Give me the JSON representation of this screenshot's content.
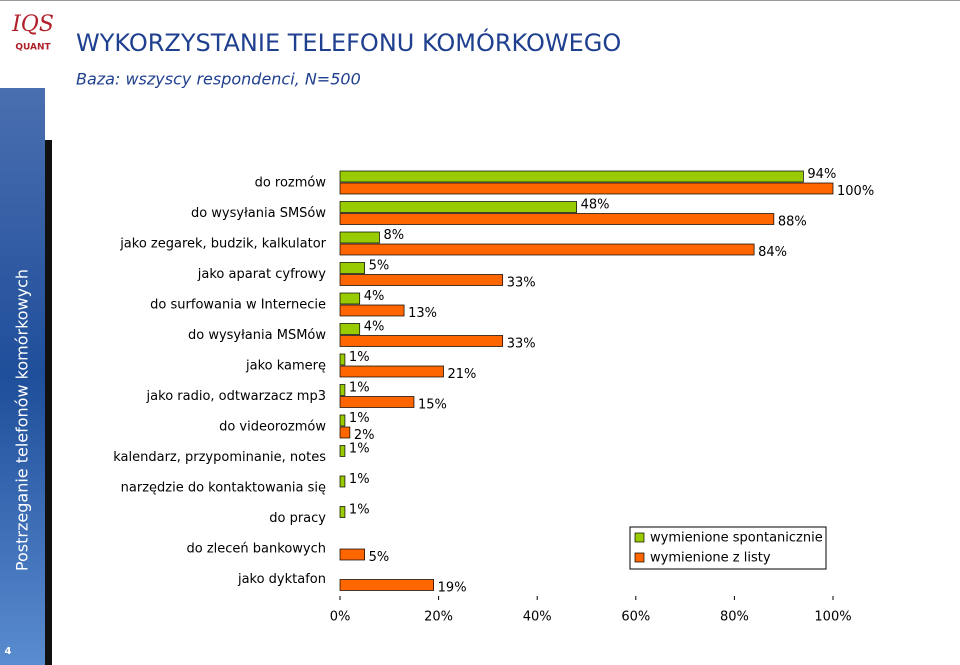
{
  "logo": [
    "IQS",
    "QUANT"
  ],
  "header": {
    "title": "WYKORZYSTANIE TELEFONU KOMÓRKOWEGO",
    "subtitle": "Baza: wszyscy respondenci, N=500"
  },
  "sidebar": "Postrzeganie telefonów komórkowych",
  "page_number": "4",
  "chart_data": {
    "type": "bar",
    "orientation": "horizontal",
    "categories": [
      "do rozmów",
      "do wysyłania SMSów",
      "jako zegarek, budzik, kalkulator",
      "jako aparat cyfrowy",
      "do surfowania w Internecie",
      "do wysyłania MSMów",
      "jako kamerę",
      "jako radio, odtwarzacz mp3",
      "do videorozmów",
      "kalendarz, przypominanie, notes",
      "narzędzie do kontaktowania się",
      "do pracy",
      "do zleceń bankowych",
      "jako dyktafon"
    ],
    "series": [
      {
        "name": "wymienione spontanicznie",
        "color": "#99cc00",
        "values": [
          94,
          48,
          8,
          5,
          4,
          4,
          1,
          1,
          1,
          1,
          1,
          1,
          null,
          null
        ],
        "value_labels": [
          "94%",
          "48%",
          "8%",
          "5%",
          "4%",
          "4%",
          "1%",
          "1%",
          "1%",
          "1%",
          "1%",
          "1%",
          null,
          null
        ]
      },
      {
        "name": "wymienione z listy",
        "color": "#ff6600",
        "values": [
          100,
          88,
          84,
          33,
          13,
          33,
          21,
          15,
          2,
          null,
          null,
          null,
          5,
          19
        ],
        "value_labels": [
          "100%",
          "88%",
          "84%",
          "33%",
          "13%",
          "33%",
          "21%",
          "15%",
          "2%",
          null,
          null,
          null,
          "5%",
          "19%"
        ]
      }
    ],
    "xlim": [
      0,
      100
    ],
    "xticks": [
      {
        "value": 0,
        "label": "0%"
      },
      {
        "value": 20,
        "label": "20%"
      },
      {
        "value": 40,
        "label": "40%"
      },
      {
        "value": 60,
        "label": "60%"
      },
      {
        "value": 80,
        "label": "80%"
      },
      {
        "value": 100,
        "label": "100%"
      }
    ]
  }
}
